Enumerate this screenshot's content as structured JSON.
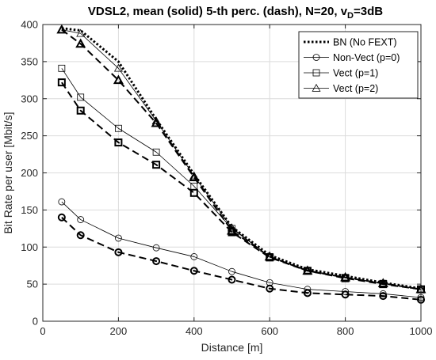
{
  "chart_data": {
    "type": "line",
    "title_main": "VDSL2, mean (solid) 5-th perc. (dash), N=20, v",
    "title_sub": "D",
    "title_tail": "=3dB",
    "xlabel": "Distance [m]",
    "ylabel": "Bit Rate per user [Mbit/s]",
    "xlim": [
      0,
      1000
    ],
    "ylim": [
      0,
      400
    ],
    "xticks": [
      "0",
      "200",
      "400",
      "600",
      "800",
      "1000"
    ],
    "yticks": [
      "0",
      "50",
      "100",
      "150",
      "200",
      "250",
      "300",
      "350",
      "400"
    ],
    "grid": true,
    "legend_position": "top-right",
    "series": [
      {
        "name": "BN (No FEXT)",
        "style": "dotted",
        "marker": "none",
        "color": "#000000",
        "x": [
          50,
          100,
          200,
          300,
          400,
          500,
          600,
          700,
          800,
          900,
          1000
        ],
        "mean": [
          395,
          392,
          350,
          272,
          198,
          127,
          89,
          70,
          61,
          52,
          44
        ],
        "p5": null
      },
      {
        "name": "Non-Vect (p=0)",
        "style": "solid",
        "marker": "circle",
        "color": "#000000",
        "x": [
          50,
          100,
          200,
          300,
          400,
          500,
          600,
          700,
          800,
          900,
          1000
        ],
        "mean": [
          161,
          137,
          112,
          99,
          87,
          67,
          52,
          43,
          40,
          37,
          32
        ],
        "p5": [
          140,
          116,
          93,
          81,
          68,
          56,
          44,
          38,
          36,
          34,
          29
        ]
      },
      {
        "name": "Vect (p=1)",
        "style": "solid",
        "marker": "square",
        "color": "#000000",
        "x": [
          50,
          100,
          200,
          300,
          400,
          500,
          600,
          700,
          800,
          900,
          1000
        ],
        "mean": [
          341,
          302,
          260,
          228,
          182,
          125,
          87,
          68,
          59,
          51,
          43
        ],
        "p5": [
          322,
          284,
          241,
          211,
          173,
          120,
          86,
          68,
          58,
          50,
          43
        ]
      },
      {
        "name": "Vect (p=2)",
        "style": "solid",
        "marker": "triangle",
        "color": "#000000",
        "x": [
          50,
          100,
          200,
          300,
          400,
          500,
          600,
          700,
          800,
          900,
          1000
        ],
        "mean": [
          393,
          388,
          341,
          270,
          196,
          126,
          87,
          69,
          59,
          51,
          43
        ],
        "p5": [
          393,
          374,
          325,
          267,
          194,
          122,
          87,
          68,
          59,
          51,
          43
        ]
      }
    ]
  }
}
